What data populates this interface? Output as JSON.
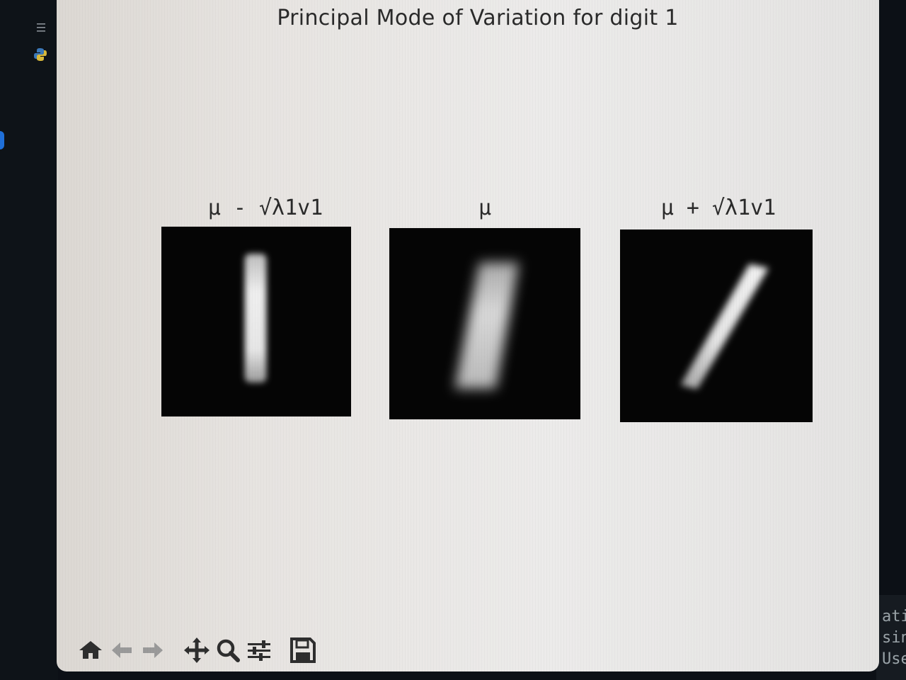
{
  "figure": {
    "title": "Principal Mode of Variation for digit 1",
    "subplots": [
      {
        "title": "μ - √λ1v1",
        "stroke": "vertical"
      },
      {
        "title": "μ",
        "stroke": "slanted-blurred"
      },
      {
        "title": "μ + √λ1v1",
        "stroke": "slanted"
      }
    ]
  },
  "toolbar": {
    "buttons": [
      {
        "name": "home",
        "icon": "home-icon"
      },
      {
        "name": "back",
        "icon": "arrow-left-icon"
      },
      {
        "name": "forward",
        "icon": "arrow-right-icon"
      },
      {
        "name": "pan",
        "icon": "move-icon"
      },
      {
        "name": "zoom",
        "icon": "magnifier-icon"
      },
      {
        "name": "configure-subplots",
        "icon": "sliders-icon"
      },
      {
        "name": "save",
        "icon": "floppy-icon"
      }
    ]
  },
  "code_peek": {
    "lines": [
      "ati",
      "sin",
      "Use"
    ]
  },
  "colors": {
    "figure_bg": "#e8e6e3",
    "image_bg": "#050505",
    "text": "#2a2a2a",
    "accent": "#1f6fd8"
  }
}
